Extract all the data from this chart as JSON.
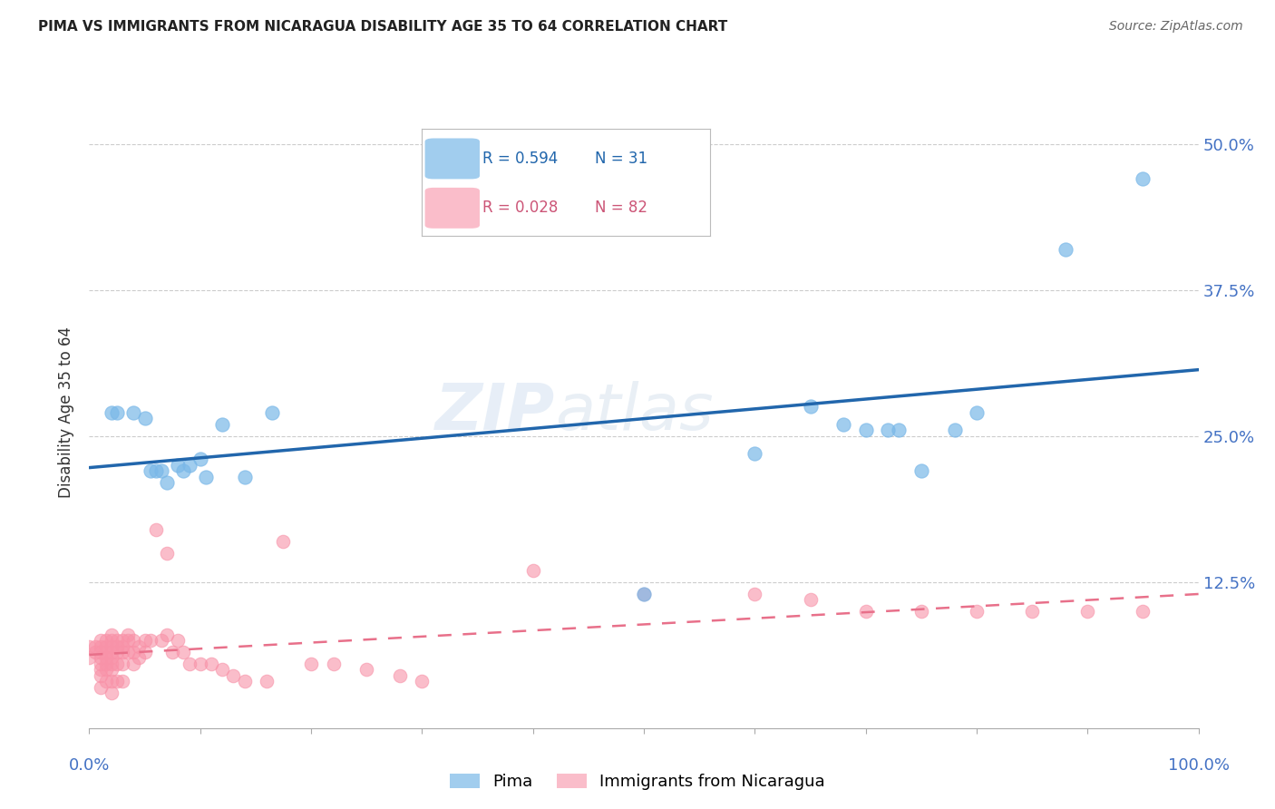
{
  "title": "PIMA VS IMMIGRANTS FROM NICARAGUA DISABILITY AGE 35 TO 64 CORRELATION CHART",
  "source": "Source: ZipAtlas.com",
  "ylabel": "Disability Age 35 to 64",
  "ytick_values": [
    0.0,
    0.125,
    0.25,
    0.375,
    0.5
  ],
  "ylim": [
    0.0,
    0.54
  ],
  "xlim": [
    0.0,
    1.0
  ],
  "legend_blue_r": "R = 0.594",
  "legend_blue_n": "N = 31",
  "legend_pink_r": "R = 0.028",
  "legend_pink_n": "N = 82",
  "pima_color": "#7ab8e8",
  "nicaragua_color": "#f892a8",
  "trendline_blue_color": "#2166ac",
  "trendline_pink_color": "#e8708a",
  "background_color": "#ffffff",
  "watermark_zip": "ZIP",
  "watermark_atlas": "atlas",
  "pima_x": [
    0.02,
    0.025,
    0.04,
    0.05,
    0.055,
    0.06,
    0.065,
    0.07,
    0.08,
    0.085,
    0.09,
    0.1,
    0.105,
    0.12,
    0.14,
    0.165,
    0.5,
    0.6,
    0.65,
    0.68,
    0.7,
    0.72,
    0.73,
    0.75,
    0.78,
    0.8,
    0.88,
    0.95
  ],
  "pima_y": [
    0.27,
    0.27,
    0.27,
    0.265,
    0.22,
    0.22,
    0.22,
    0.21,
    0.225,
    0.22,
    0.225,
    0.23,
    0.215,
    0.26,
    0.215,
    0.27,
    0.115,
    0.235,
    0.275,
    0.26,
    0.255,
    0.255,
    0.255,
    0.22,
    0.255,
    0.27,
    0.41,
    0.47
  ],
  "nicaragua_x": [
    0.0,
    0.0,
    0.005,
    0.005,
    0.01,
    0.01,
    0.01,
    0.01,
    0.01,
    0.01,
    0.01,
    0.01,
    0.015,
    0.015,
    0.015,
    0.015,
    0.015,
    0.015,
    0.015,
    0.02,
    0.02,
    0.02,
    0.02,
    0.02,
    0.02,
    0.02,
    0.02,
    0.02,
    0.025,
    0.025,
    0.025,
    0.025,
    0.025,
    0.03,
    0.03,
    0.03,
    0.03,
    0.03,
    0.035,
    0.035,
    0.035,
    0.04,
    0.04,
    0.04,
    0.045,
    0.045,
    0.05,
    0.05,
    0.055,
    0.06,
    0.065,
    0.07,
    0.07,
    0.075,
    0.08,
    0.085,
    0.09,
    0.1,
    0.11,
    0.12,
    0.13,
    0.14,
    0.16,
    0.175,
    0.2,
    0.22,
    0.25,
    0.28,
    0.3,
    0.4,
    0.5,
    0.6,
    0.65,
    0.7,
    0.75,
    0.8,
    0.85,
    0.9,
    0.95
  ],
  "nicaragua_y": [
    0.07,
    0.06,
    0.07,
    0.065,
    0.075,
    0.07,
    0.065,
    0.06,
    0.055,
    0.05,
    0.045,
    0.035,
    0.075,
    0.07,
    0.065,
    0.06,
    0.055,
    0.05,
    0.04,
    0.08,
    0.075,
    0.07,
    0.065,
    0.06,
    0.055,
    0.05,
    0.04,
    0.03,
    0.075,
    0.07,
    0.065,
    0.055,
    0.04,
    0.075,
    0.07,
    0.065,
    0.055,
    0.04,
    0.08,
    0.075,
    0.065,
    0.075,
    0.065,
    0.055,
    0.07,
    0.06,
    0.075,
    0.065,
    0.075,
    0.17,
    0.075,
    0.15,
    0.08,
    0.065,
    0.075,
    0.065,
    0.055,
    0.055,
    0.055,
    0.05,
    0.045,
    0.04,
    0.04,
    0.16,
    0.055,
    0.055,
    0.05,
    0.045,
    0.04,
    0.135,
    0.115,
    0.115,
    0.11,
    0.1,
    0.1,
    0.1,
    0.1,
    0.1,
    0.1
  ]
}
